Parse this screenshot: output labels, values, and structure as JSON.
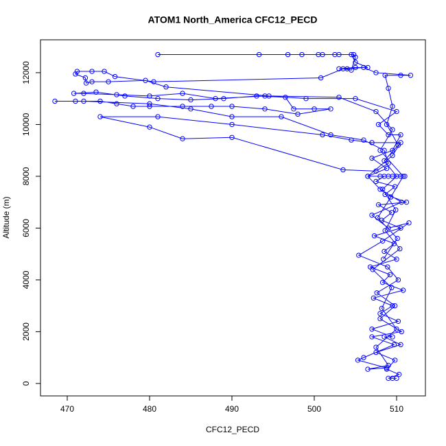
{
  "chart_data": {
    "type": "line",
    "title": "ATOM1 North_America CFC12_PECD",
    "x_label": "CFC12_PECD",
    "y_label": "Altitude (m)",
    "color": "#0000ff",
    "markers": true,
    "xlim": [
      466.75,
      513.5
    ],
    "ylim": [
      -480,
      13270
    ],
    "xticks": [
      470,
      480,
      490,
      500,
      510
    ],
    "yticks": [
      0,
      2000,
      4000,
      6000,
      8000,
      10000,
      12000
    ],
    "x": [
      509.5,
      510,
      509,
      510.3,
      508.8,
      509.8,
      507.5,
      510.5,
      508.5,
      509.5,
      507,
      510.2,
      508,
      509.5,
      507.2,
      510.8,
      508.3,
      509.2,
      506.8,
      510,
      508.5,
      509.7,
      507.3,
      510.5,
      508.2,
      509.4,
      507.8,
      511.2,
      508.6,
      509.8,
      507.5,
      508.5,
      509.5,
      510.5,
      511,
      509,
      508,
      506.5,
      508.8,
      507,
      509.5,
      510.5,
      509,
      507.8,
      510,
      505,
      499,
      494,
      488,
      484,
      480,
      476,
      472,
      470.8,
      473.5,
      477,
      481,
      485,
      489,
      493,
      496.5,
      497.5,
      500,
      502,
      498,
      494,
      490,
      487.5,
      484,
      480,
      478,
      476,
      474,
      471,
      468.5,
      472,
      480,
      485,
      490,
      496,
      502,
      506,
      508.5,
      509,
      507.5,
      503.5,
      490,
      484,
      480,
      474,
      481,
      490,
      501,
      504.5,
      507,
      510.5,
      509.5,
      506.5,
      508,
      510.6,
      507,
      509,
      511.5,
      508.3,
      505.4,
      508.9,
      510.2,
      507.6,
      509.8,
      508,
      510.6,
      507,
      509.7,
      506,
      505.3,
      508.8,
      506.5,
      509,
      507.5,
      510,
      508.2,
      509.4,
      507.1,
      510.4,
      508.6,
      509.9,
      508.3,
      510,
      508.5,
      510.2,
      508.8,
      509.5,
      509,
      508.6,
      510.5,
      511.7,
      507.5,
      506,
      504,
      503,
      505,
      506.5,
      505,
      504.5,
      503,
      501,
      498.5,
      493.3,
      481,
      496.8,
      500.5,
      502.5,
      504.8,
      505,
      504.5,
      503.5,
      500.8,
      480.5,
      475.8,
      474.5,
      473,
      471.2,
      471,
      472.2,
      472.3,
      473,
      475,
      479.5,
      482,
      494.5,
      503,
      507.5,
      509.5,
      508,
      510.8,
      509.3,
      507.7,
      510.1,
      508.4
    ],
    "values": [
      200,
      200,
      200,
      350,
      550,
      900,
      1200,
      1500,
      1800,
      1800,
      2100,
      2400,
      2700,
      3000,
      3300,
      3600,
      3900,
      4200,
      4500,
      4800,
      5100,
      5400,
      5700,
      6000,
      6300,
      6600,
      6900,
      7000,
      7300,
      7600,
      7800,
      8000,
      8000,
      8000,
      8000,
      8000,
      8000,
      8000,
      8300,
      8700,
      9000,
      9600,
      9600,
      10000,
      10500,
      11000,
      11000,
      11100,
      11000,
      11200,
      11100,
      11150,
      11200,
      11200,
      11250,
      11100,
      11000,
      10950,
      11000,
      11100,
      11050,
      10600,
      10600,
      10600,
      10400,
      10600,
      10700,
      10700,
      10700,
      10700,
      10700,
      10800,
      10900,
      10900,
      10900,
      10900,
      10800,
      10600,
      10300,
      10300,
      9600,
      9400,
      9000,
      8500,
      8200,
      8250,
      9500,
      9450,
      9900,
      10300,
      10300,
      10000,
      9600,
      9400,
      9300,
      9300,
      8800,
      8000,
      7500,
      7000,
      6500,
      6000,
      6200,
      5500,
      4950,
      4500,
      4000,
      3500,
      3000,
      2500,
      2000,
      1800,
      1500,
      1000,
      900,
      600,
      550,
      700,
      1400,
      2100,
      2900,
      3700,
      4400,
      5200,
      5900,
      6700,
      7500,
      8000,
      8600,
      9200,
      10000,
      10700,
      11400,
      11900,
      11900,
      11900,
      12000,
      12200,
      12150,
      12150,
      12200,
      12200,
      12400,
      12700,
      12700,
      12700,
      12700,
      12700,
      12700,
      12700,
      12700,
      12700,
      12700,
      12600,
      12100,
      12150,
      11800,
      11650,
      11850,
      12050,
      12050,
      12050,
      11950,
      11800,
      11600,
      11650,
      11650,
      11700,
      11450,
      11100,
      11050,
      10500,
      9800,
      9000,
      8000,
      7200,
      6400,
      5600,
      4800
    ]
  }
}
